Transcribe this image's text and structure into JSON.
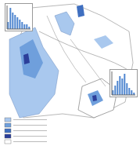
{
  "map": {
    "legend_colors": [
      "#a9c8ee",
      "#6f9fdc",
      "#3f6fc0",
      "#2c3f9a",
      "#ffffff"
    ]
  },
  "chart_data": [
    {
      "type": "bar",
      "categories": [
        null,
        null,
        null,
        null,
        null,
        null,
        null,
        null,
        null,
        null
      ],
      "values": [
        3,
        9,
        7,
        6,
        5,
        4,
        3,
        2,
        2,
        1
      ],
      "color": "#4f86d0",
      "ylim": [
        0,
        10
      ],
      "tick_labels": false
    },
    {
      "type": "bar",
      "categories": [
        null,
        null,
        null,
        null,
        null,
        null,
        null,
        null,
        null,
        null
      ],
      "values": [
        2,
        4,
        6,
        8,
        7,
        9,
        5,
        3,
        2,
        1
      ],
      "color": "#4f86d0",
      "ylim": [
        0,
        10
      ],
      "tick_labels": false
    }
  ]
}
